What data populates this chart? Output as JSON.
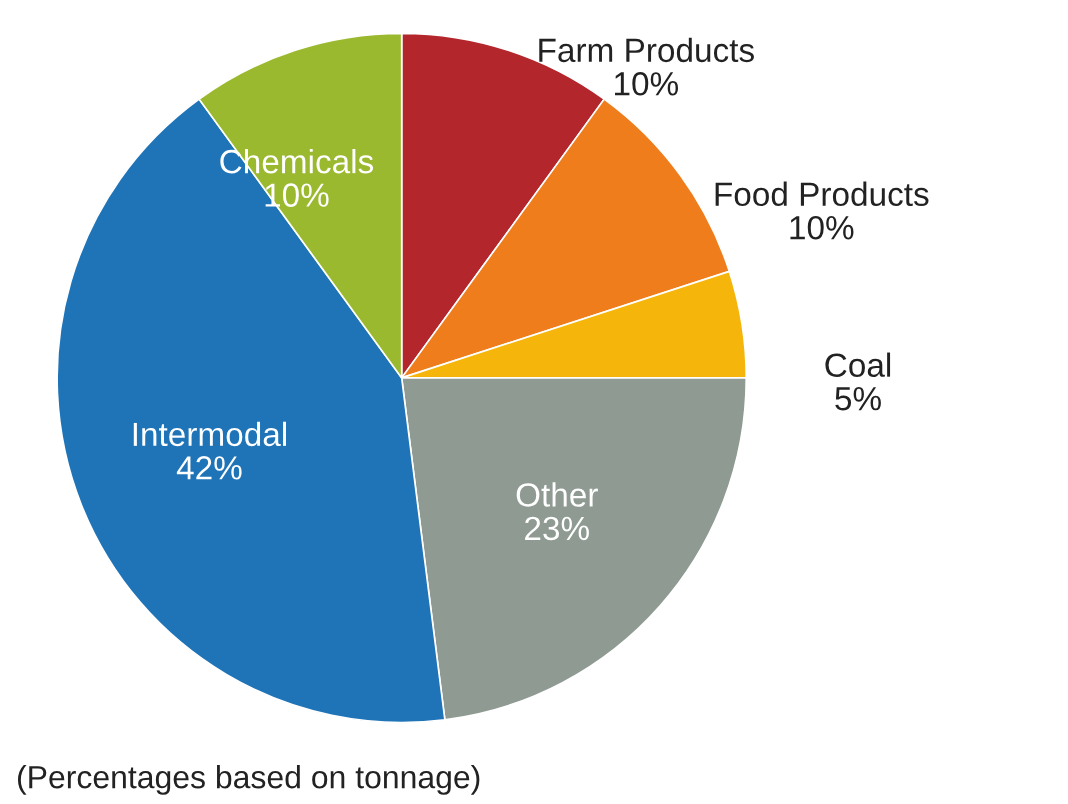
{
  "chart_data": {
    "type": "pie",
    "categories": [
      "Farm Products",
      "Food Products",
      "Coal",
      "Other",
      "Intermodal",
      "Chemicals"
    ],
    "values": [
      10,
      10,
      5,
      23,
      42,
      10
    ],
    "colors": [
      "#b3262c",
      "#ef7d1c",
      "#f5b50a",
      "#8e9a92",
      "#1f74b8",
      "#9bb92f"
    ],
    "value_labels": [
      "10%",
      "10%",
      "5%",
      "23%",
      "42%",
      "10%"
    ],
    "annotations": [
      "(Percentages based on tonnage)"
    ]
  }
}
